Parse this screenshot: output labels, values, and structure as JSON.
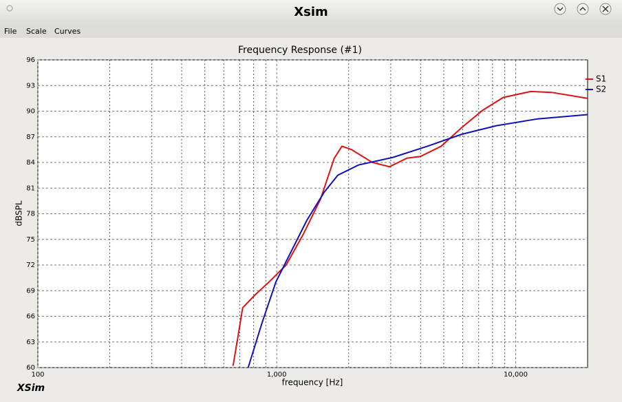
{
  "window": {
    "title": "Xsim"
  },
  "menu": [
    "File",
    "Scale",
    "Curves"
  ],
  "logo": "XSim",
  "chart_data": {
    "type": "line",
    "title": "Frequency Response (#1)",
    "x_label": "frequency [Hz]",
    "y_label": "dBSPL",
    "xlog": true,
    "grid": true,
    "xlim": [
      100,
      20000
    ],
    "xticks": [
      100,
      {
        "value": 1000,
        "label": "1,000"
      },
      {
        "value": 10000,
        "label": "10,000"
      }
    ],
    "xminor": [
      200,
      300,
      400,
      500,
      600,
      700,
      800,
      900,
      2000,
      3000,
      4000,
      5000,
      6000,
      7000,
      8000,
      9000
    ],
    "ylim": [
      60,
      96
    ],
    "yticks": [
      60,
      63,
      66,
      69,
      72,
      75,
      78,
      81,
      84,
      87,
      90,
      93,
      96
    ],
    "legend": "upper right",
    "series": [
      {
        "name": "S1",
        "color": "#dd1111",
        "x": [
          656,
          687,
          720,
          811,
          927,
          1094,
          1291,
          1524,
          1741,
          1875,
          2056,
          2512,
          2966,
          3500,
          3998,
          4878,
          5953,
          7266,
          8865,
          11560,
          14120,
          20000
        ],
        "values": [
          60.2,
          63.5,
          67.0,
          68.5,
          70.0,
          72.0,
          75.6,
          79.7,
          84.5,
          85.9,
          85.5,
          84.0,
          83.5,
          84.5,
          84.7,
          85.9,
          88.1,
          90.1,
          91.6,
          92.3,
          92.2,
          91.5
        ]
      },
      {
        "name": "S2",
        "color": "#1111bb",
        "x": [
          759,
          867,
          991,
          1131,
          1335,
          1578,
          1800,
          2198,
          3064,
          4272,
          5953,
          8300,
          12360,
          20000
        ],
        "values": [
          60.0,
          65.2,
          70.0,
          73.2,
          77.2,
          80.5,
          82.5,
          83.7,
          84.6,
          85.9,
          87.3,
          88.3,
          89.1,
          89.6
        ]
      }
    ]
  }
}
